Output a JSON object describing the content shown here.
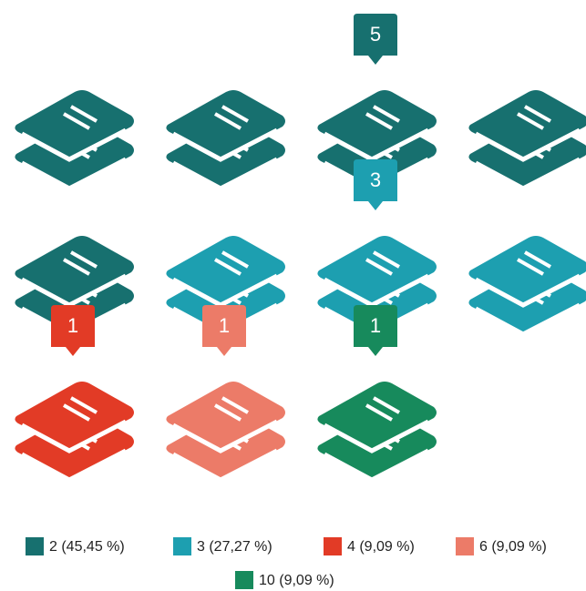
{
  "chart_data": {
    "type": "pictograph",
    "categories": [
      "2 (45,45 %)",
      "3 (27,27 %)",
      "4 (9,09 %)",
      "6 (9,09 %)",
      "10 (9,09 %)"
    ],
    "values": [
      5,
      3,
      1,
      1,
      1
    ],
    "colors": [
      "#17706f",
      "#1d9fb0",
      "#e23b26",
      "#ec7b68",
      "#178a5c"
    ],
    "legend": "bottom"
  }
}
